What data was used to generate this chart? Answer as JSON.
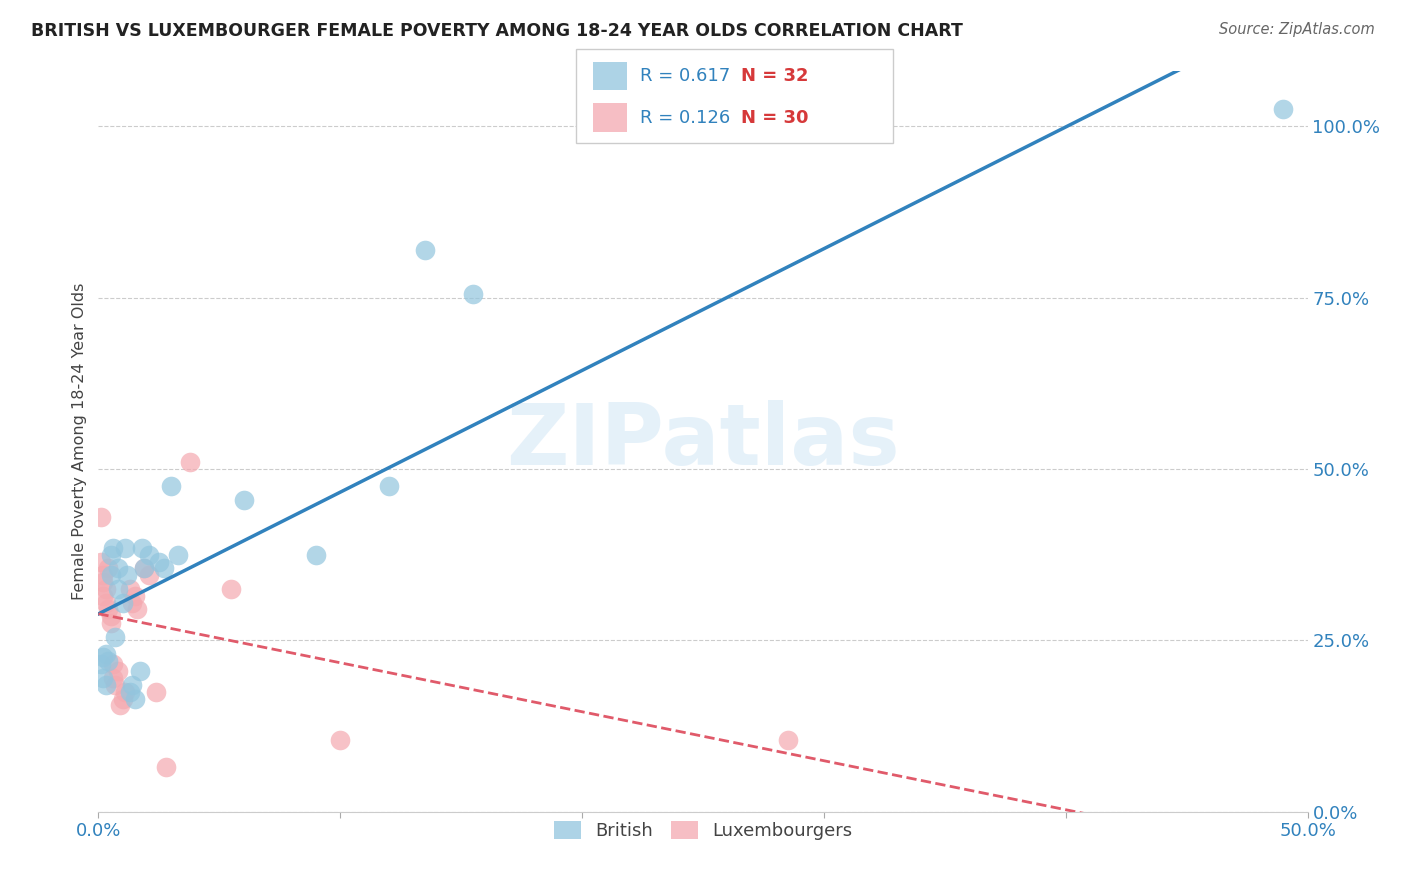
{
  "title": "BRITISH VS LUXEMBOURGER FEMALE POVERTY AMONG 18-24 YEAR OLDS CORRELATION CHART",
  "source": "Source: ZipAtlas.com",
  "ylabel": "Female Poverty Among 18-24 Year Olds",
  "xlim": [
    0.0,
    0.5
  ],
  "ylim": [
    0.0,
    1.08
  ],
  "xticks": [
    0.0,
    0.1,
    0.2,
    0.3,
    0.4,
    0.5
  ],
  "xtick_labels": [
    "0.0%",
    "",
    "",
    "",
    "",
    "50.0%"
  ],
  "yticks_right": [
    0.0,
    0.25,
    0.5,
    0.75,
    1.0
  ],
  "ytick_labels_right": [
    "0.0%",
    "25.0%",
    "50.0%",
    "75.0%",
    "100.0%"
  ],
  "british_color": "#92c5de",
  "luxembourger_color": "#f4a9b0",
  "british_line_color": "#3182bd",
  "luxembourger_line_color": "#e05a6a",
  "R_british": 0.617,
  "N_british": 32,
  "R_luxembourger": 0.126,
  "N_luxembourger": 30,
  "watermark": "ZIPatlas",
  "british_scatter": [
    [
      0.001,
      0.215
    ],
    [
      0.002,
      0.195
    ],
    [
      0.002,
      0.225
    ],
    [
      0.003,
      0.23
    ],
    [
      0.003,
      0.185
    ],
    [
      0.004,
      0.22
    ],
    [
      0.005,
      0.375
    ],
    [
      0.005,
      0.345
    ],
    [
      0.006,
      0.385
    ],
    [
      0.007,
      0.255
    ],
    [
      0.008,
      0.355
    ],
    [
      0.008,
      0.325
    ],
    [
      0.01,
      0.305
    ],
    [
      0.011,
      0.385
    ],
    [
      0.012,
      0.345
    ],
    [
      0.013,
      0.175
    ],
    [
      0.014,
      0.185
    ],
    [
      0.015,
      0.165
    ],
    [
      0.017,
      0.205
    ],
    [
      0.018,
      0.385
    ],
    [
      0.019,
      0.355
    ],
    [
      0.021,
      0.375
    ],
    [
      0.025,
      0.365
    ],
    [
      0.027,
      0.355
    ],
    [
      0.03,
      0.475
    ],
    [
      0.033,
      0.375
    ],
    [
      0.06,
      0.455
    ],
    [
      0.09,
      0.375
    ],
    [
      0.12,
      0.475
    ],
    [
      0.135,
      0.82
    ],
    [
      0.155,
      0.755
    ],
    [
      0.49,
      1.025
    ]
  ],
  "luxembourger_scatter": [
    [
      0.001,
      0.43
    ],
    [
      0.001,
      0.365
    ],
    [
      0.002,
      0.335
    ],
    [
      0.002,
      0.345
    ],
    [
      0.002,
      0.315
    ],
    [
      0.003,
      0.305
    ],
    [
      0.003,
      0.325
    ],
    [
      0.004,
      0.355
    ],
    [
      0.004,
      0.295
    ],
    [
      0.005,
      0.275
    ],
    [
      0.005,
      0.285
    ],
    [
      0.006,
      0.195
    ],
    [
      0.006,
      0.215
    ],
    [
      0.007,
      0.185
    ],
    [
      0.008,
      0.205
    ],
    [
      0.009,
      0.155
    ],
    [
      0.01,
      0.165
    ],
    [
      0.011,
      0.175
    ],
    [
      0.013,
      0.325
    ],
    [
      0.014,
      0.305
    ],
    [
      0.015,
      0.315
    ],
    [
      0.016,
      0.295
    ],
    [
      0.019,
      0.355
    ],
    [
      0.021,
      0.345
    ],
    [
      0.024,
      0.175
    ],
    [
      0.028,
      0.065
    ],
    [
      0.038,
      0.51
    ],
    [
      0.055,
      0.325
    ],
    [
      0.1,
      0.105
    ],
    [
      0.285,
      0.105
    ]
  ]
}
